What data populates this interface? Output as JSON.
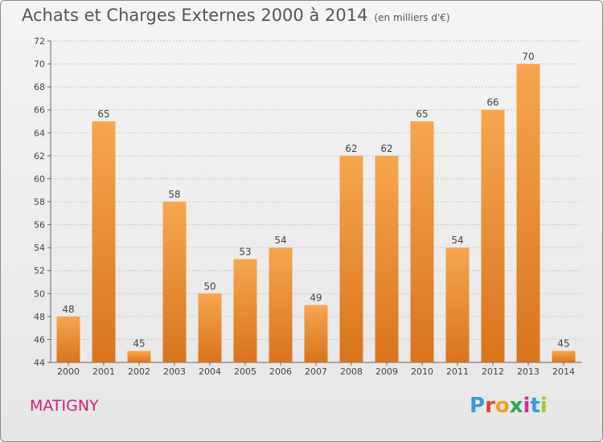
{
  "title": "Achats et Charges Externes 2000 à 2014",
  "unit": "(en milliers d'€)",
  "commune": "MATIGNY",
  "brand": {
    "letters": [
      "P",
      "r",
      "o",
      "x",
      "i",
      "t",
      "i"
    ],
    "colors": [
      "#3a9ad9",
      "#e04a2a",
      "#f0a020",
      "#2aa84a",
      "#cc3399",
      "#3a9ad9",
      "#9acd32"
    ]
  },
  "chart_data": {
    "type": "bar",
    "categories": [
      "2000",
      "2001",
      "2002",
      "2003",
      "2004",
      "2005",
      "2006",
      "2007",
      "2008",
      "2009",
      "2010",
      "2011",
      "2012",
      "2013",
      "2014"
    ],
    "values": [
      48,
      65,
      45,
      58,
      50,
      53,
      54,
      49,
      62,
      62,
      65,
      54,
      66,
      70,
      45
    ],
    "ylim": [
      44,
      72
    ],
    "yticks": [
      44,
      46,
      48,
      50,
      52,
      54,
      56,
      58,
      60,
      62,
      64,
      66,
      68,
      70,
      72
    ],
    "grid": true,
    "bar_color_top": "#f6a64e",
    "bar_color_bottom": "#d9741c"
  }
}
